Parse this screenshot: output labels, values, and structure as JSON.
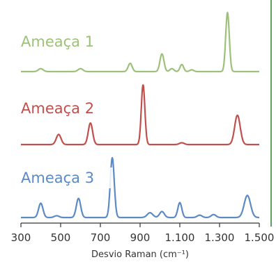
{
  "chart_data": {
    "type": "line",
    "title": "",
    "xlabel": "Desvio Raman (cm⁻¹)",
    "ylabel": "",
    "xlim": [
      300,
      1500
    ],
    "x_ticks": [
      300,
      500,
      700,
      900,
      1100,
      1300,
      1500
    ],
    "x_tick_labels": [
      "300",
      "500",
      "700",
      "900",
      "1.100",
      "1.300",
      "1.500"
    ],
    "grid": false,
    "legend": "none",
    "series": [
      {
        "name": "Ameaça 1",
        "color": "#9dc17a",
        "baseline": 0.0,
        "peaks": [
          {
            "x": 400,
            "h": 0.05,
            "w": 12
          },
          {
            "x": 600,
            "h": 0.05,
            "w": 12
          },
          {
            "x": 850,
            "h": 0.14,
            "w": 10
          },
          {
            "x": 1010,
            "h": 0.3,
            "w": 10
          },
          {
            "x": 1060,
            "h": 0.05,
            "w": 10
          },
          {
            "x": 1110,
            "h": 0.12,
            "w": 9
          },
          {
            "x": 1160,
            "h": 0.03,
            "w": 10
          },
          {
            "x": 1340,
            "h": 1.0,
            "w": 9
          }
        ]
      },
      {
        "name": "Ameaça 2",
        "color": "#c0504d",
        "baseline": 0.0,
        "peaks": [
          {
            "x": 490,
            "h": 0.17,
            "w": 12
          },
          {
            "x": 650,
            "h": 0.36,
            "w": 11
          },
          {
            "x": 915,
            "h": 1.0,
            "w": 9
          },
          {
            "x": 1110,
            "h": 0.03,
            "w": 12
          },
          {
            "x": 1390,
            "h": 0.49,
            "w": 14
          }
        ]
      },
      {
        "name": "Ameaça 3",
        "color": "#5b8ac5",
        "baseline": 0.0,
        "peaks": [
          {
            "x": 400,
            "h": 0.24,
            "w": 11
          },
          {
            "x": 480,
            "h": 0.03,
            "w": 12
          },
          {
            "x": 590,
            "h": 0.32,
            "w": 11
          },
          {
            "x": 760,
            "h": 1.0,
            "w": 10
          },
          {
            "x": 950,
            "h": 0.08,
            "w": 14
          },
          {
            "x": 1010,
            "h": 0.1,
            "w": 12
          },
          {
            "x": 1100,
            "h": 0.25,
            "w": 10
          },
          {
            "x": 1200,
            "h": 0.04,
            "w": 12
          },
          {
            "x": 1270,
            "h": 0.05,
            "w": 12
          },
          {
            "x": 1440,
            "h": 0.37,
            "w": 16
          }
        ]
      }
    ]
  }
}
